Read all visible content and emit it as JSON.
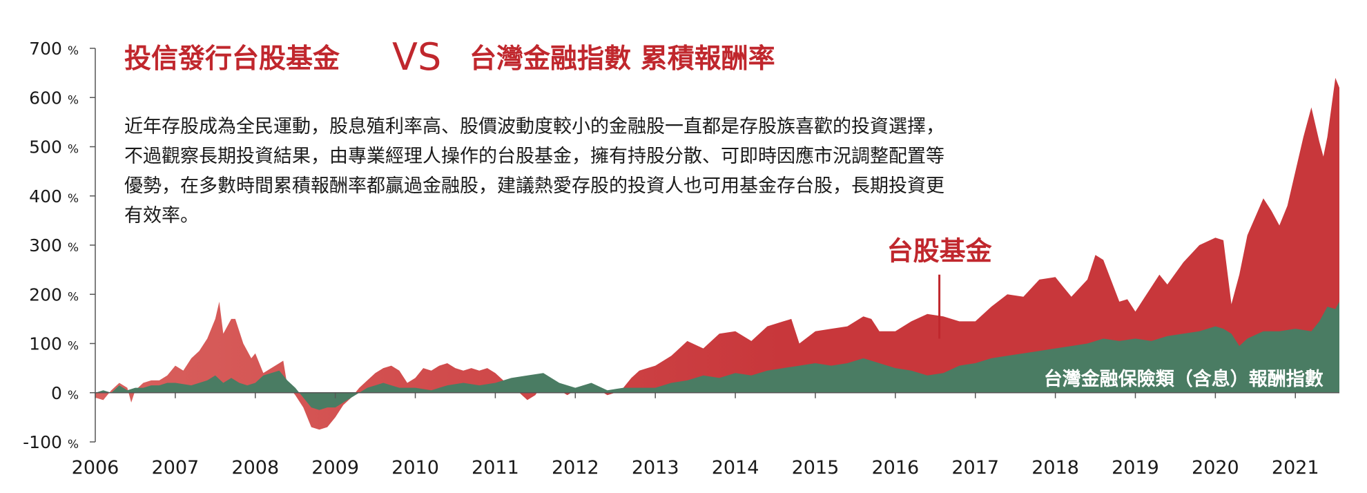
{
  "title": {
    "left": "投信發行台股基金",
    "vs": "VS",
    "right": "台灣金融指數 累積報酬率"
  },
  "description": [
    "近年存股成為全民運動，股息殖利率高、股價波動度較小的金融股一直都是存股族喜歡的投資選擇，",
    "不過觀察長期投資結果，由專業經理人操作的台股基金，擁有持股分散、可即時因應市況調整配置等",
    "優勢，在多數時間累積報酬率都贏過金融股，建議熱愛存股的投資人也可用基金存台股，長期投資更",
    "有效率。"
  ],
  "colors": {
    "fund": "#c8373b",
    "fund_light": "#d9615e",
    "index": "#4a7c63",
    "title": "#c0272d",
    "axis": "#555555"
  },
  "chart_data": {
    "type": "area",
    "x_unit": "year",
    "xlim": [
      2006,
      2021.55
    ],
    "ylim": [
      -100,
      700
    ],
    "y_ticks": [
      {
        "value": 700,
        "num": "700",
        "unit": "%"
      },
      {
        "value": 600,
        "num": "600",
        "unit": "%"
      },
      {
        "value": 500,
        "num": "500",
        "unit": "%"
      },
      {
        "value": 400,
        "num": "400",
        "unit": "%"
      },
      {
        "value": 300,
        "num": "300",
        "unit": "%"
      },
      {
        "value": 200,
        "num": "200",
        "unit": "%"
      },
      {
        "value": 100,
        "num": "100",
        "unit": "%"
      },
      {
        "value": 0,
        "num": "0",
        "unit": "%"
      },
      {
        "value": -100,
        "num": "-100",
        "unit": "%"
      }
    ],
    "x_ticks": [
      {
        "value": 2006,
        "label": "2006"
      },
      {
        "value": 2007,
        "label": "2007"
      },
      {
        "value": 2008,
        "label": "2008"
      },
      {
        "value": 2009,
        "label": "2009"
      },
      {
        "value": 2010,
        "label": "2010"
      },
      {
        "value": 2011,
        "label": "2011"
      },
      {
        "value": 2012,
        "label": "2012"
      },
      {
        "value": 2013,
        "label": "2013"
      },
      {
        "value": 2014,
        "label": "2014"
      },
      {
        "value": 2015,
        "label": "2015"
      },
      {
        "value": 2016,
        "label": "2016"
      },
      {
        "value": 2017,
        "label": "2017"
      },
      {
        "value": 2018,
        "label": "2018"
      },
      {
        "value": 2019,
        "label": "2019"
      },
      {
        "value": 2020,
        "label": "2020"
      },
      {
        "value": 2021,
        "label": "2021"
      }
    ],
    "series": [
      {
        "name": "台股基金",
        "x": [
          2006.0,
          2006.1,
          2006.2,
          2006.3,
          2006.4,
          2006.45,
          2006.5,
          2006.6,
          2006.7,
          2006.8,
          2006.9,
          2007.0,
          2007.1,
          2007.2,
          2007.3,
          2007.4,
          2007.5,
          2007.55,
          2007.6,
          2007.7,
          2007.75,
          2007.85,
          2007.95,
          2008.0,
          2008.1,
          2008.2,
          2008.3,
          2008.35,
          2008.4,
          2008.5,
          2008.6,
          2008.7,
          2008.8,
          2008.9,
          2009.0,
          2009.1,
          2009.2,
          2009.3,
          2009.4,
          2009.5,
          2009.6,
          2009.7,
          2009.8,
          2009.9,
          2010.0,
          2010.1,
          2010.2,
          2010.3,
          2010.4,
          2010.5,
          2010.6,
          2010.7,
          2010.8,
          2010.9,
          2011.0,
          2011.1,
          2011.2,
          2011.3,
          2011.4,
          2011.5,
          2011.6,
          2011.7,
          2011.8,
          2011.9,
          2012.0,
          2012.1,
          2012.2,
          2012.3,
          2012.4,
          2012.5,
          2012.6,
          2012.7,
          2012.8,
          2012.9,
          2013.0,
          2013.2,
          2013.4,
          2013.6,
          2013.8,
          2014.0,
          2014.2,
          2014.4,
          2014.6,
          2014.7,
          2014.8,
          2015.0,
          2015.2,
          2015.4,
          2015.6,
          2015.7,
          2015.8,
          2016.0,
          2016.2,
          2016.4,
          2016.6,
          2016.8,
          2017.0,
          2017.2,
          2017.4,
          2017.6,
          2017.8,
          2018.0,
          2018.1,
          2018.2,
          2018.4,
          2018.5,
          2018.6,
          2018.8,
          2018.9,
          2019.0,
          2019.1,
          2019.3,
          2019.4,
          2019.6,
          2019.8,
          2020.0,
          2020.1,
          2020.2,
          2020.3,
          2020.4,
          2020.6,
          2020.7,
          2020.8,
          2020.9,
          2021.0,
          2021.1,
          2021.2,
          2021.3,
          2021.35,
          2021.4,
          2021.5,
          2021.55
        ],
        "values": [
          -10,
          -15,
          5,
          20,
          10,
          -20,
          5,
          20,
          25,
          25,
          35,
          55,
          45,
          70,
          85,
          110,
          150,
          185,
          120,
          150,
          150,
          100,
          70,
          80,
          40,
          50,
          60,
          65,
          15,
          -5,
          -30,
          -70,
          -75,
          -70,
          -50,
          -25,
          -10,
          10,
          25,
          40,
          50,
          55,
          45,
          20,
          30,
          50,
          45,
          55,
          60,
          50,
          45,
          50,
          45,
          50,
          40,
          25,
          5,
          0,
          -15,
          -5,
          20,
          15,
          5,
          -5,
          5,
          15,
          15,
          5,
          -5,
          0,
          10,
          30,
          45,
          50,
          55,
          75,
          105,
          90,
          120,
          125,
          105,
          135,
          145,
          150,
          100,
          125,
          130,
          135,
          155,
          150,
          125,
          125,
          145,
          160,
          155,
          145,
          145,
          175,
          200,
          195,
          230,
          235,
          215,
          195,
          230,
          280,
          270,
          185,
          190,
          165,
          190,
          240,
          220,
          265,
          300,
          315,
          310,
          180,
          240,
          320,
          395,
          370,
          340,
          380,
          450,
          520,
          580,
          510,
          480,
          520,
          640,
          620
        ]
      },
      {
        "name": "台灣金融保險類（含息）報酬指數",
        "x": [
          2006.0,
          2006.1,
          2006.2,
          2006.3,
          2006.4,
          2006.5,
          2006.6,
          2006.7,
          2006.8,
          2006.9,
          2007.0,
          2007.2,
          2007.4,
          2007.5,
          2007.6,
          2007.7,
          2007.8,
          2007.9,
          2008.0,
          2008.1,
          2008.2,
          2008.3,
          2008.4,
          2008.5,
          2008.6,
          2008.7,
          2008.8,
          2008.9,
          2009.0,
          2009.1,
          2009.2,
          2009.3,
          2009.4,
          2009.5,
          2009.6,
          2009.7,
          2009.8,
          2009.9,
          2010.0,
          2010.2,
          2010.4,
          2010.6,
          2010.8,
          2011.0,
          2011.2,
          2011.4,
          2011.6,
          2011.8,
          2012.0,
          2012.2,
          2012.4,
          2012.6,
          2012.8,
          2013.0,
          2013.2,
          2013.4,
          2013.6,
          2013.8,
          2014.0,
          2014.2,
          2014.4,
          2014.6,
          2014.8,
          2015.0,
          2015.2,
          2015.4,
          2015.6,
          2015.8,
          2016.0,
          2016.2,
          2016.4,
          2016.6,
          2016.8,
          2017.0,
          2017.2,
          2017.4,
          2017.6,
          2017.8,
          2018.0,
          2018.2,
          2018.4,
          2018.6,
          2018.8,
          2019.0,
          2019.2,
          2019.4,
          2019.6,
          2019.8,
          2020.0,
          2020.1,
          2020.2,
          2020.3,
          2020.4,
          2020.6,
          2020.8,
          2021.0,
          2021.2,
          2021.3,
          2021.4,
          2021.5,
          2021.55
        ],
        "values": [
          0,
          5,
          0,
          15,
          5,
          10,
          10,
          15,
          15,
          20,
          20,
          15,
          25,
          35,
          20,
          30,
          20,
          15,
          20,
          35,
          40,
          45,
          25,
          10,
          -10,
          -30,
          -35,
          -30,
          -30,
          -20,
          -10,
          0,
          10,
          15,
          20,
          15,
          10,
          10,
          10,
          5,
          15,
          20,
          15,
          20,
          30,
          35,
          40,
          20,
          10,
          20,
          5,
          10,
          10,
          10,
          20,
          25,
          35,
          30,
          40,
          35,
          45,
          50,
          55,
          60,
          55,
          60,
          70,
          60,
          50,
          45,
          35,
          40,
          55,
          60,
          70,
          75,
          80,
          85,
          90,
          95,
          100,
          110,
          105,
          110,
          105,
          115,
          120,
          125,
          135,
          130,
          120,
          95,
          110,
          125,
          125,
          130,
          125,
          145,
          175,
          170,
          185
        ]
      }
    ],
    "annotations": {
      "fund_label": "台股基金",
      "fund_label_x": 2016.55,
      "fund_label_value": 110,
      "index_label": "台灣金融保險類（含息）報酬指數"
    }
  }
}
